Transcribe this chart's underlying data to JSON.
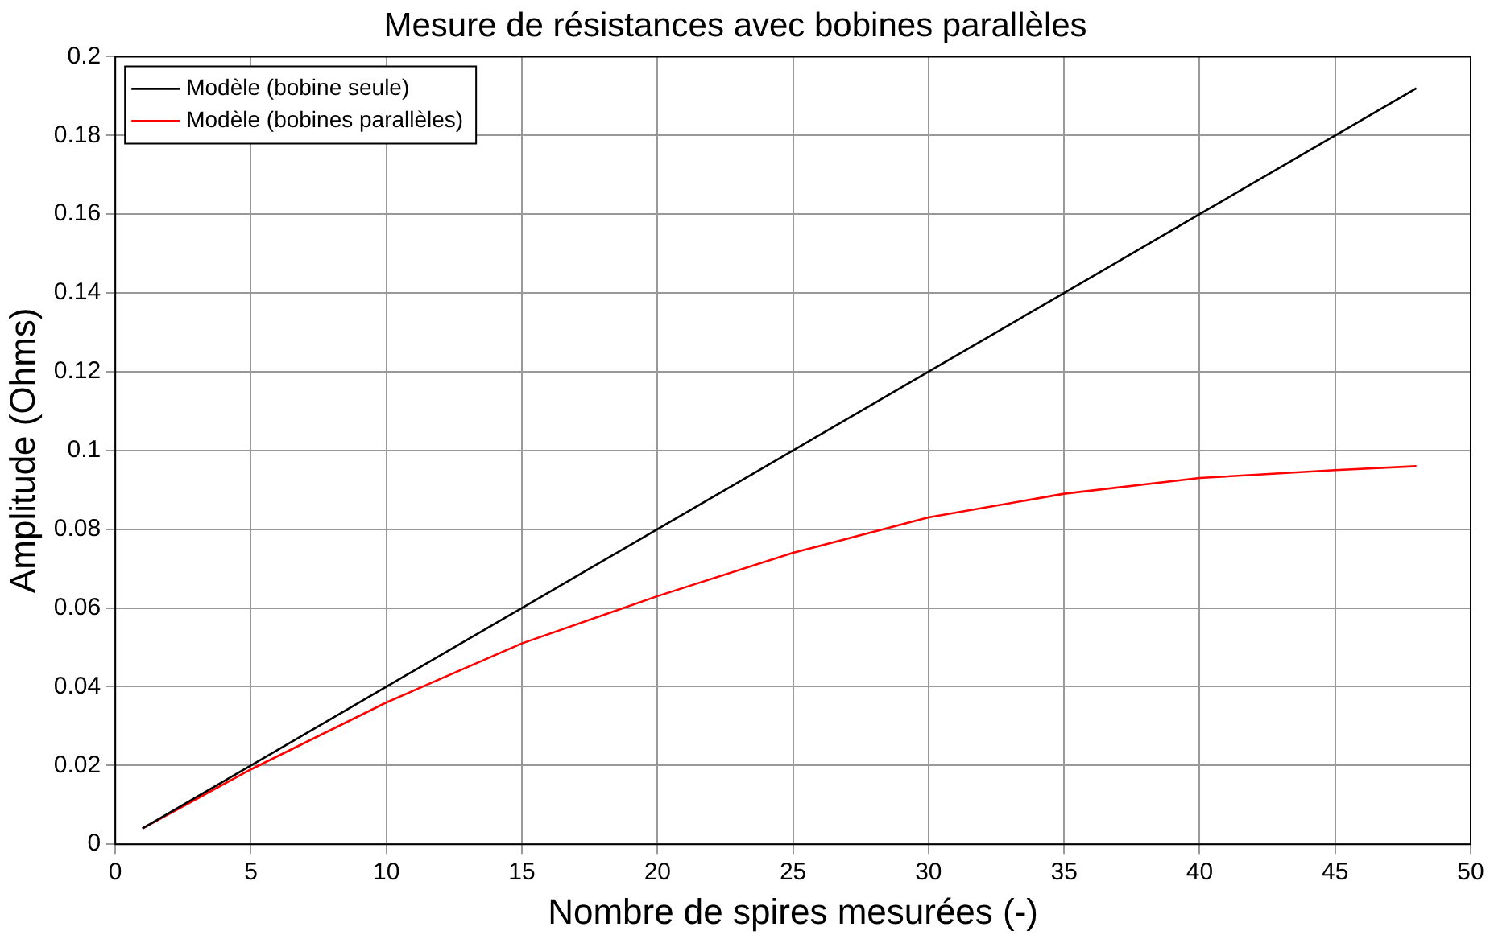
{
  "chart_data": {
    "type": "line",
    "title": "Mesure de résistances avec bobines parallèles",
    "xlabel": "Nombre de spires mesurées (-)",
    "ylabel": "Amplitude (Ohms)",
    "x": [
      1,
      5,
      10,
      15,
      20,
      25,
      30,
      35,
      40,
      45,
      48
    ],
    "series": [
      {
        "name": "Modèle (bobine seule)",
        "color": "#000000",
        "values": [
          0.004,
          0.02,
          0.04,
          0.06,
          0.08,
          0.1,
          0.12,
          0.14,
          0.16,
          0.18,
          0.192
        ]
      },
      {
        "name": "Modèle (bobines parallèles)",
        "color": "#ff0000",
        "values": [
          0.004,
          0.019,
          0.036,
          0.051,
          0.063,
          0.074,
          0.083,
          0.089,
          0.093,
          0.095,
          0.096
        ]
      }
    ],
    "xlim": [
      0,
      50
    ],
    "xticks": [
      0,
      5,
      10,
      15,
      20,
      25,
      30,
      35,
      40,
      45,
      50
    ],
    "ylim": [
      0,
      0.2
    ],
    "yticks": [
      0,
      0.02,
      0.04,
      0.06,
      0.08,
      0.1,
      0.12,
      0.14,
      0.16,
      0.18,
      0.2
    ],
    "grid": true,
    "legend": "top left",
    "marker": "none",
    "line_style": "solid"
  }
}
